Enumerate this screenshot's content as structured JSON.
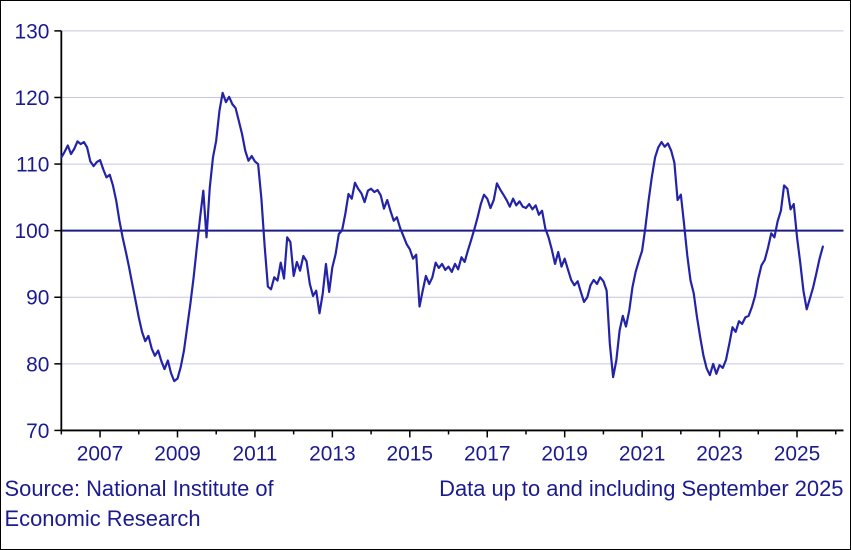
{
  "window": {
    "background": "#ffffff",
    "border_color": "#000000"
  },
  "chart_data": {
    "type": "line",
    "title": "",
    "frequency": "monthly",
    "x_start_year": 2006,
    "x_start_month": 1,
    "x_end_label": "September 2025",
    "values": [
      111.0,
      111.8,
      112.8,
      111.5,
      112.3,
      113.4,
      113.0,
      113.3,
      112.5,
      110.4,
      109.7,
      110.3,
      110.6,
      109.2,
      108.0,
      108.4,
      106.8,
      104.5,
      101.5,
      99.0,
      96.8,
      94.5,
      92.0,
      89.5,
      87.0,
      84.8,
      83.4,
      84.2,
      82.3,
      81.2,
      82.0,
      80.4,
      79.2,
      80.5,
      78.6,
      77.4,
      77.8,
      79.5,
      82.0,
      85.5,
      89.0,
      93.0,
      97.5,
      102.0,
      106.0,
      99.0,
      106.5,
      111.0,
      113.5,
      118.0,
      120.7,
      119.3,
      120.1,
      119.0,
      118.4,
      116.5,
      114.5,
      112.0,
      110.5,
      111.2,
      110.4,
      110.0,
      104.8,
      97.8,
      91.6,
      91.2,
      93.0,
      92.5,
      95.2,
      92.8,
      99.0,
      98.3,
      93.2,
      95.3,
      94.0,
      96.2,
      95.4,
      92.0,
      90.2,
      91.0,
      87.6,
      90.5,
      95.0,
      90.8,
      94.5,
      96.5,
      99.5,
      100.0,
      102.5,
      105.5,
      104.8,
      107.2,
      106.3,
      105.6,
      104.3,
      106.0,
      106.3,
      105.8,
      106.1,
      105.3,
      103.3,
      104.6,
      103.0,
      101.5,
      102.0,
      100.4,
      99.2,
      98.0,
      97.2,
      95.8,
      96.4,
      88.6,
      91.0,
      93.2,
      92.0,
      93.0,
      95.2,
      94.4,
      95.0,
      94.1,
      94.6,
      93.8,
      95.0,
      94.2,
      96.0,
      95.3,
      97.0,
      98.6,
      100.2,
      102.0,
      104.0,
      105.4,
      104.8,
      103.4,
      104.6,
      107.1,
      106.2,
      105.4,
      104.6,
      103.6,
      104.8,
      103.8,
      104.4,
      103.6,
      103.4,
      104.0,
      103.2,
      103.8,
      102.4,
      103.0,
      100.3,
      99.0,
      97.2,
      95.0,
      96.8,
      94.6,
      95.8,
      94.2,
      92.6,
      91.8,
      92.4,
      90.8,
      89.3,
      90.0,
      91.8,
      92.6,
      92.0,
      93.0,
      92.4,
      91.0,
      83.0,
      78.0,
      80.5,
      85.0,
      87.2,
      85.6,
      88.0,
      91.5,
      93.8,
      95.5,
      97.0,
      100.5,
      104.5,
      108.0,
      111.0,
      112.5,
      113.3,
      112.6,
      113.1,
      112.0,
      110.2,
      104.6,
      105.4,
      101.0,
      96.2,
      92.5,
      90.6,
      87.0,
      84.0,
      81.2,
      79.3,
      78.3,
      80.0,
      78.5,
      79.8,
      79.4,
      80.6,
      83.0,
      85.5,
      84.8,
      86.4,
      86.0,
      87.0,
      87.2,
      88.5,
      90.2,
      92.8,
      94.8,
      95.6,
      97.4,
      99.6,
      99.0,
      101.4,
      103.0,
      106.8,
      106.3,
      103.2,
      104.0,
      99.0,
      95.2,
      91.0,
      88.2,
      89.8,
      91.5,
      93.6,
      95.8,
      97.6
    ],
    "ylim": [
      70,
      130
    ],
    "yticks": [
      70,
      80,
      90,
      100,
      110,
      120,
      130
    ],
    "xtick_years": [
      2007,
      2009,
      2011,
      2013,
      2015,
      2017,
      2019,
      2021,
      2023,
      2025
    ],
    "xlim": [
      2006.0,
      2026.2
    ],
    "reference_line": 100,
    "grid": true,
    "legend": false,
    "colors": {
      "series": "#2323a8",
      "reference": "#1c1c85",
      "grid": "#c6c6de",
      "axis": "#000000",
      "labels": "#1b1b8f"
    }
  },
  "footer": {
    "source_line1": "Source: National Institute of",
    "source_line2": "Economic Research",
    "data_note": "Data up to and including September 2025"
  }
}
